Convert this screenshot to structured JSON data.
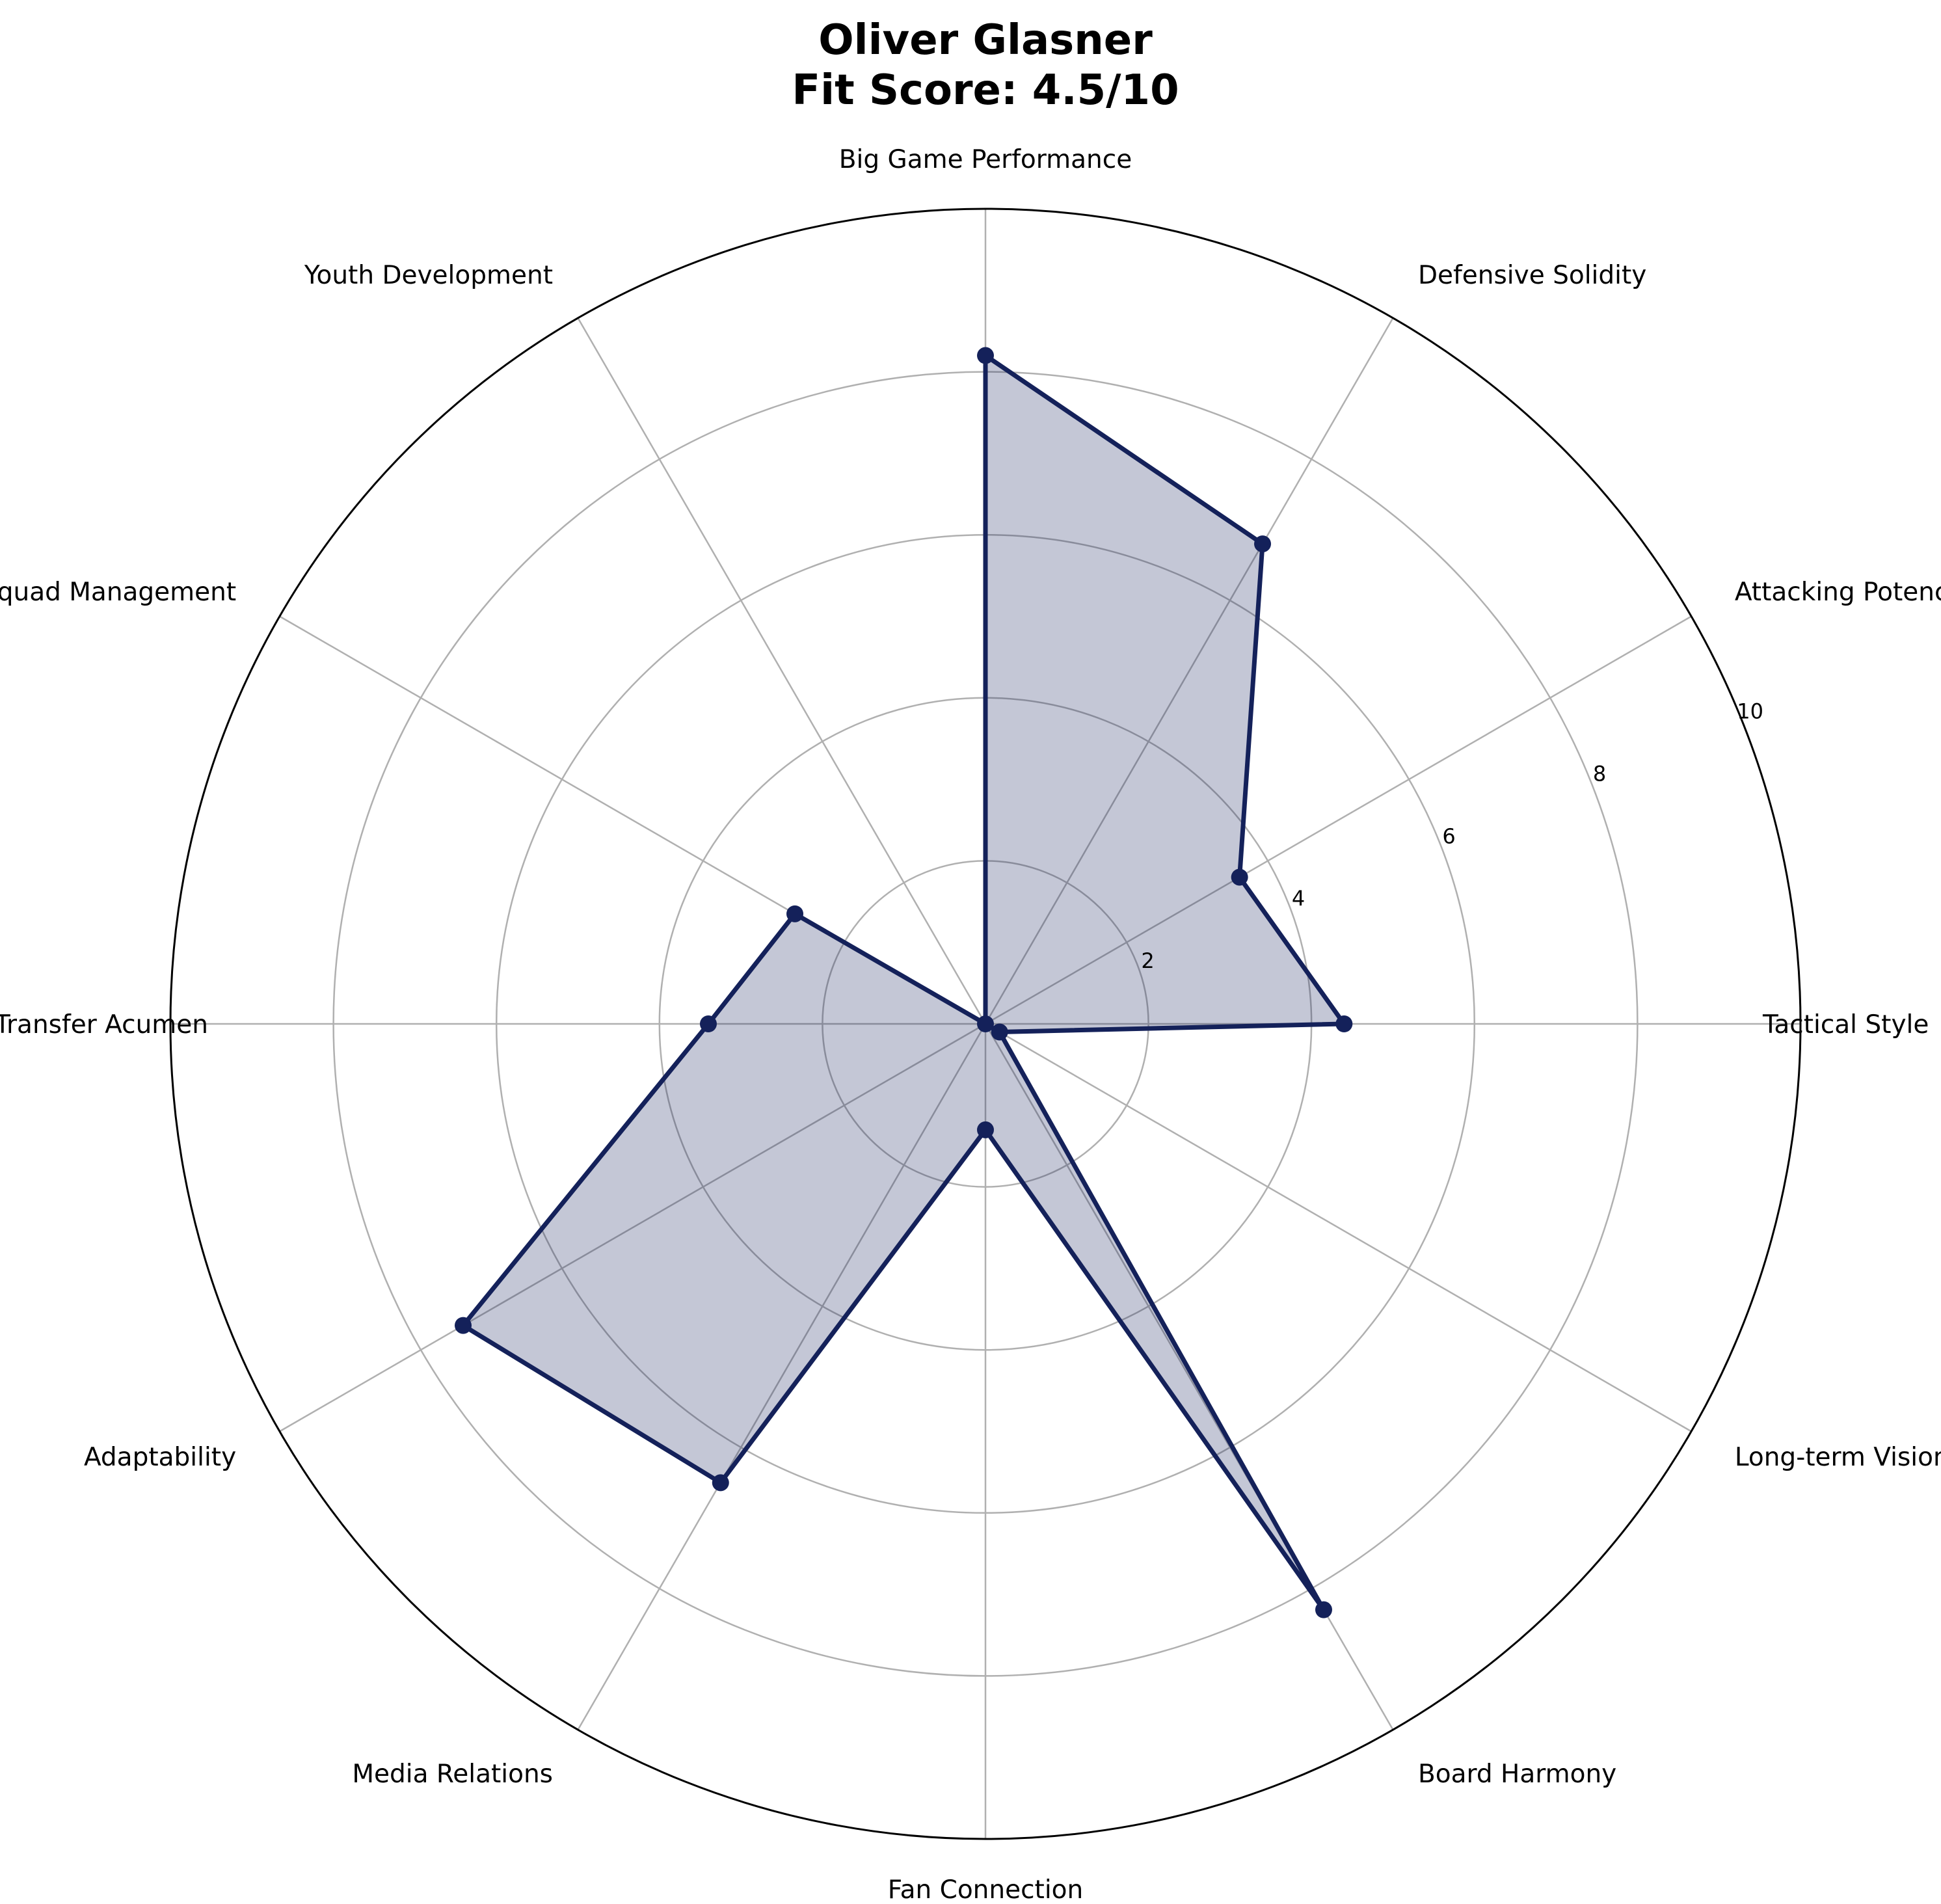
{
  "chart_data": {
    "type": "radar",
    "title_line1": "Oliver Glasner",
    "title_line2": "Fit Score: 4.5/10",
    "categories": [
      "Tactical Style",
      "Attacking Potency",
      "Defensive Solidity",
      "Big Game Performance",
      "Youth Development",
      "Squad Management",
      "Transfer Acumen",
      "Adaptability",
      "Media Relations",
      "Fan Connection",
      "Board Harmony",
      "Long-term Vision"
    ],
    "values": [
      4.4,
      3.6,
      6.8,
      8.2,
      0,
      2.7,
      3.4,
      7.4,
      6.5,
      1.3,
      8.3,
      0.2
    ],
    "rlim": [
      0,
      10
    ],
    "rticks": [
      "2",
      "4",
      "6",
      "8",
      "10"
    ],
    "grid": true,
    "colors": {
      "line": "#14215a",
      "fill": "#14215a",
      "fill_opacity": 0.25,
      "grid": "#b0b0b0",
      "outer": "#000000"
    }
  }
}
